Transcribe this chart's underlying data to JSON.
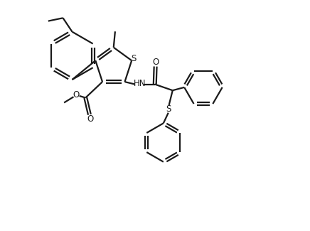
{
  "background_color": "#ffffff",
  "line_color": "#1a1a1a",
  "line_width": 1.6,
  "figsize": [
    4.36,
    3.25
  ],
  "dpi": 100,
  "xlim": [
    0,
    10
  ],
  "ylim": [
    0,
    7.5
  ]
}
